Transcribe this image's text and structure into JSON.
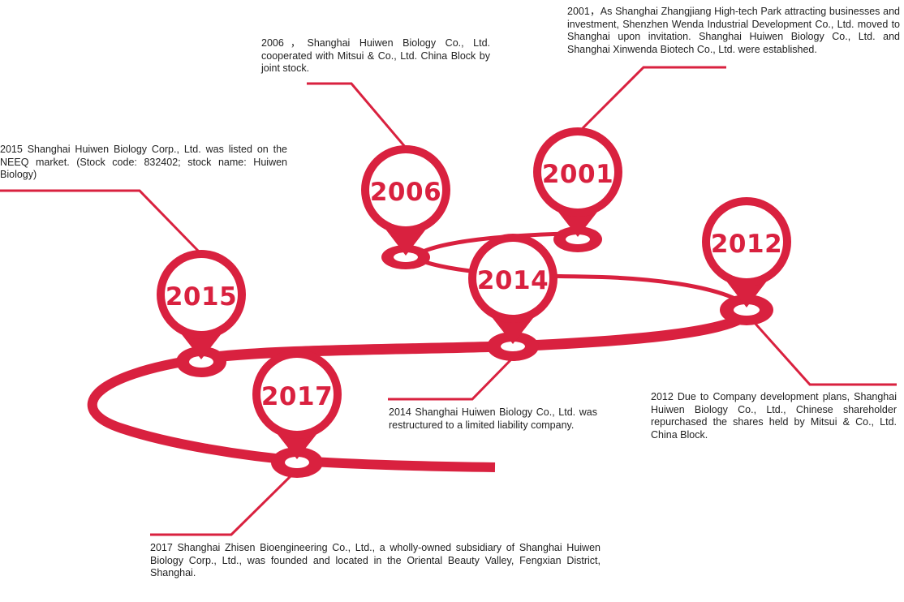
{
  "theme": {
    "accent": "#d9213f",
    "text": "#222222",
    "background": "#ffffff"
  },
  "milestones": [
    {
      "year": "2001",
      "text": "2001，As Shanghai Zhangjiang High-tech Park attracting businesses and investment, Shenzhen Wenda Industrial Development Co., Ltd. moved to Shanghai upon invitation. Shanghai Huiwen Biology Co., Ltd. and Shanghai Xinwenda Biotech Co., Ltd. were established."
    },
    {
      "year": "2006",
      "text": "2006，Shanghai Huiwen Biology Co., Ltd. cooperated with Mitsui & Co., Ltd. China Block by joint stock."
    },
    {
      "year": "2012",
      "text": "2012 Due to Company development plans, Shanghai Huiwen Biology Co., Ltd., Chinese shareholder repurchased the shares held by Mitsui & Co., Ltd. China Block."
    },
    {
      "year": "2014",
      "text": "2014 Shanghai Huiwen Biology Co., Ltd. was restructured to a limited liability company."
    },
    {
      "year": "2015",
      "text": "2015 Shanghai Huiwen Biology Corp., Ltd. was listed on the NEEQ market. (Stock code: 832402; stock name: Huiwen Biology)"
    },
    {
      "year": "2017",
      "text": "2017 Shanghai Zhisen Bioengineering Co., Ltd., a wholly-owned subsidiary of Shanghai Huiwen Biology Corp., Ltd., was founded and located in the Oriental Beauty Valley, Fengxian District, Shanghai."
    }
  ]
}
